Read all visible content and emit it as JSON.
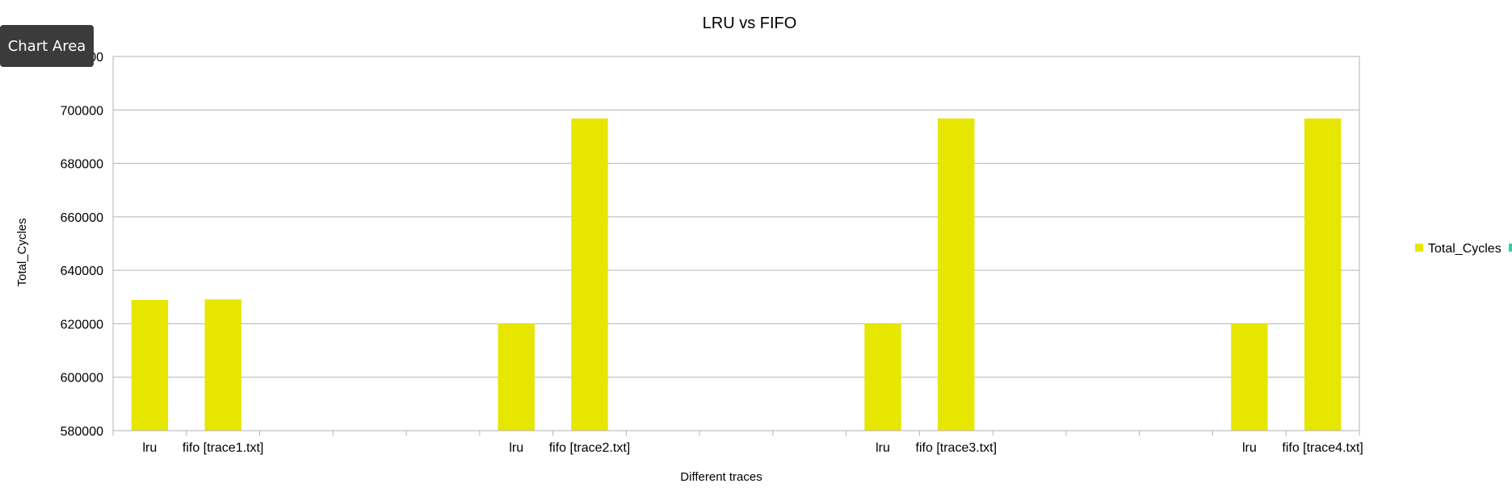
{
  "tooltip": "Chart Area",
  "chart_data": {
    "type": "bar",
    "title": "LRU vs FIFO",
    "xlabel": "Different traces",
    "ylabel": "Total_Cycles",
    "ylim": [
      580000,
      720000
    ],
    "ytick_step": 20000,
    "grid": true,
    "legend_placement": "right",
    "categories": [
      "lru",
      "fifo [trace1.txt]",
      "",
      "",
      "",
      "lru",
      "fifo [trace2.txt]",
      "",
      "",
      "",
      "lru",
      "fifo [trace3.txt]",
      "",
      "",
      "",
      "lru",
      "fifo [trace4.txt]"
    ],
    "series": [
      {
        "name": "Total_Cycles",
        "color": "#e6e600",
        "values": [
          628900,
          629100,
          null,
          null,
          null,
          620100,
          696800,
          null,
          null,
          null,
          620100,
          696800,
          null,
          null,
          null,
          620100,
          696800
        ]
      }
    ]
  }
}
